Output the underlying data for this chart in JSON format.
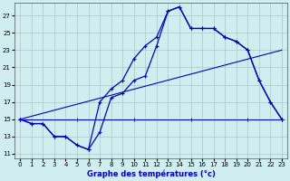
{
  "title": "Graphe des températures (°c)",
  "bg_color": "#d0eef0",
  "grid_color": "#a8c8c8",
  "line_color": "#0000cc",
  "xlim": [
    -0.5,
    23.5
  ],
  "ylim": [
    10.5,
    28.5
  ],
  "yticks": [
    11,
    13,
    15,
    17,
    19,
    21,
    23,
    25,
    27
  ],
  "xticks": [
    0,
    1,
    2,
    3,
    4,
    5,
    6,
    7,
    8,
    9,
    10,
    11,
    12,
    13,
    14,
    15,
    16,
    17,
    18,
    19,
    20,
    21,
    22,
    23
  ],
  "series1_x": [
    0,
    1,
    2,
    3,
    4,
    5,
    6,
    7,
    8,
    9,
    10,
    11,
    12,
    13,
    14,
    15,
    16,
    17,
    18,
    19,
    20,
    21,
    22,
    23
  ],
  "series1_y": [
    15,
    14.5,
    14.5,
    13,
    13,
    12,
    11.5,
    17,
    18.5,
    19.5,
    22,
    23.5,
    24.5,
    27.5,
    28,
    25.5,
    25.5,
    25.5,
    24.5,
    24,
    23,
    19.5,
    17,
    15
  ],
  "series2_x": [
    0,
    1,
    2,
    3,
    4,
    5,
    6,
    7,
    8,
    9,
    10,
    11,
    12,
    13,
    14,
    15,
    16,
    17,
    18,
    19,
    20,
    21,
    22,
    23
  ],
  "series2_y": [
    15,
    14.5,
    14.5,
    13,
    13,
    12,
    11.5,
    13.5,
    17.5,
    18,
    19.5,
    20,
    23.5,
    27.5,
    28,
    25.5,
    25.5,
    25.5,
    24.5,
    24,
    23,
    19.5,
    17,
    15
  ],
  "series3_x": [
    0,
    5,
    10,
    15,
    20,
    23
  ],
  "series3_y": [
    15,
    15,
    15,
    15,
    15,
    15
  ],
  "series4_x": [
    0,
    23
  ],
  "series4_y": [
    15,
    23
  ]
}
